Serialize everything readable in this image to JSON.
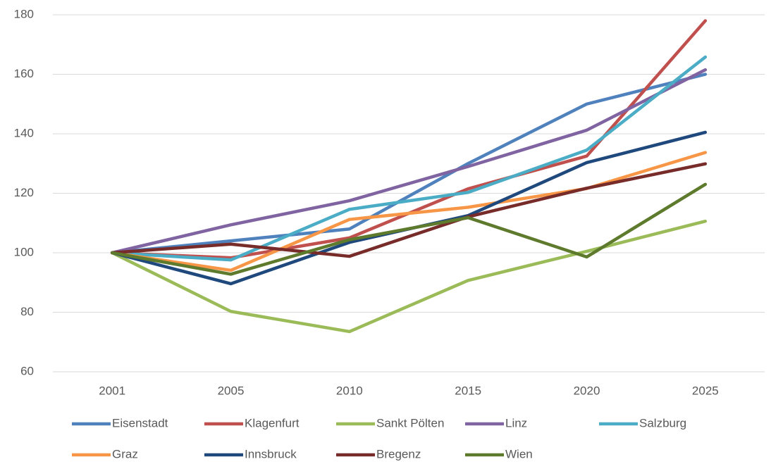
{
  "chart_data": {
    "type": "line",
    "categories": [
      "2001",
      "2005",
      "2010",
      "2015",
      "2020",
      "2025"
    ],
    "series": [
      {
        "name": "Eisenstadt",
        "color": "#4f81bd",
        "values": [
          100,
          104,
          108,
          130,
          150,
          160
        ]
      },
      {
        "name": "Klagenfurt",
        "color": "#c0504d",
        "values": [
          100,
          98.3,
          105,
          121.5,
          132.5,
          178
        ]
      },
      {
        "name": "Sankt Pölten",
        "color": "#9bbb59",
        "values": [
          100,
          80.3,
          73.5,
          90.7,
          100.5,
          110.6
        ]
      },
      {
        "name": "Linz",
        "color": "#8064a2",
        "values": [
          100,
          109.4,
          117.5,
          129,
          141.2,
          161.5
        ]
      },
      {
        "name": "Salzburg",
        "color": "#4bacc6",
        "values": [
          100,
          97.6,
          114.6,
          120.3,
          134.5,
          165.8
        ]
      },
      {
        "name": "Graz",
        "color": "#f79646",
        "values": [
          100,
          94.1,
          111.2,
          115.3,
          121.6,
          133.7
        ]
      },
      {
        "name": "Innsbruck",
        "color": "#1f497d",
        "values": [
          100,
          89.6,
          103.5,
          112.5,
          130.3,
          140.5
        ]
      },
      {
        "name": "Bregenz",
        "color": "#772c2a",
        "values": [
          100,
          102.9,
          98.8,
          112.1,
          121.7,
          129.9
        ]
      },
      {
        "name": "Wien",
        "color": "#5e7a2c",
        "values": [
          100,
          92.8,
          104.4,
          111.8,
          98.6,
          123
        ]
      }
    ],
    "ylim": [
      60,
      180
    ],
    "yticks": [
      60,
      80,
      100,
      120,
      140,
      160,
      180
    ],
    "grid": true,
    "legend": "bottom"
  }
}
